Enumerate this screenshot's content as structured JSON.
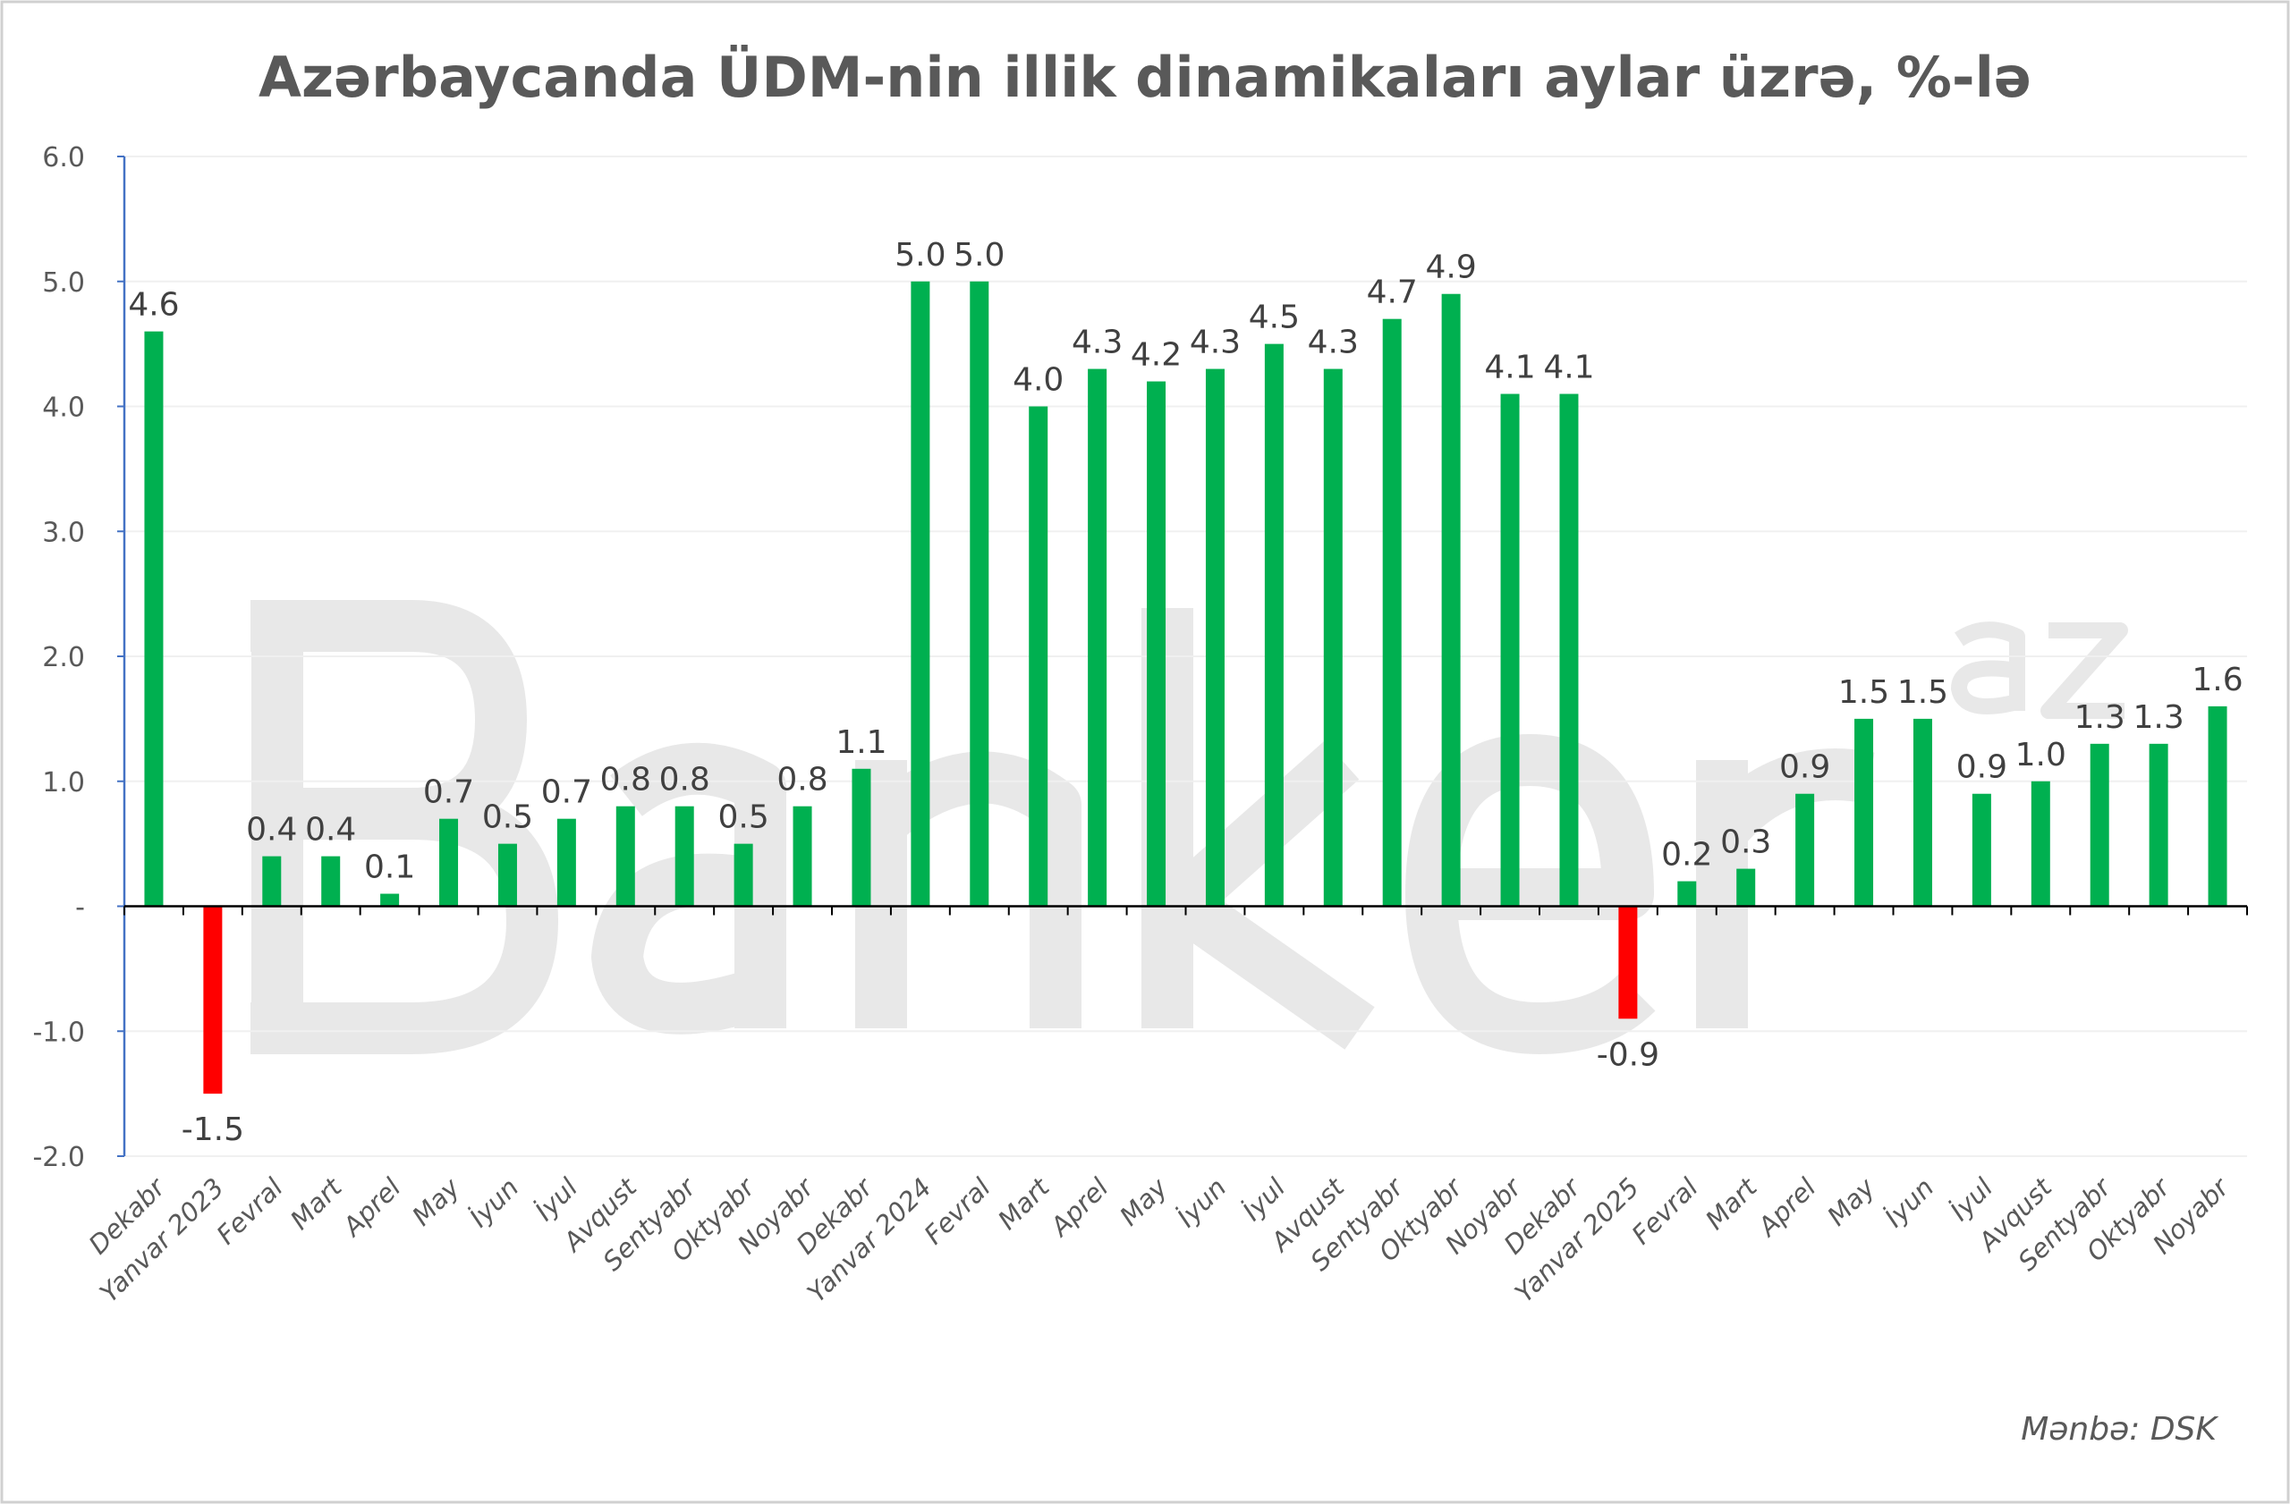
{
  "chart_data": {
    "type": "bar",
    "title": "Azərbaycanda ÜDM-nin illik dinamikaları aylar üzrə, %-lə",
    "xlabel": "",
    "ylabel": "",
    "ylim": [
      -2.0,
      6.0
    ],
    "yticks": [
      "6.0",
      "5.0",
      "4.0",
      "3.0",
      "2.0",
      "1.0",
      "-",
      "-1.0",
      "-2.0"
    ],
    "ytick_values": [
      6,
      5,
      4,
      3,
      2,
      1,
      0,
      -1,
      -2
    ],
    "grid": true,
    "categories": [
      "Dekabr",
      "Yanvar 2023",
      "Fevral",
      "Mart",
      "Aprel",
      "May",
      "İyun",
      "İyul",
      "Avqust",
      "Sentyabr",
      "Oktyabr",
      "Noyabr",
      "Dekabr",
      "Yanvar 2024",
      "Fevral",
      "Mart",
      "Aprel",
      "May",
      "İyun",
      "İyul",
      "Avqust",
      "Sentyabr",
      "Oktyabr",
      "Noyabr",
      "Dekabr",
      "Yanvar 2025",
      "Fevral",
      "Mart",
      "Aprel",
      "May",
      "İyun",
      "İyul",
      "Avqust",
      "Sentyabr",
      "Oktyabr",
      "Noyabr"
    ],
    "values": [
      4.6,
      -1.5,
      0.4,
      0.4,
      0.1,
      0.7,
      0.5,
      0.7,
      0.8,
      0.8,
      0.5,
      0.8,
      1.1,
      5.0,
      5.0,
      4.0,
      4.3,
      4.2,
      4.3,
      4.5,
      4.3,
      4.7,
      4.9,
      4.1,
      4.1,
      -0.9,
      0.2,
      0.3,
      0.9,
      1.5,
      1.5,
      0.9,
      1.0,
      1.3,
      1.3,
      1.6
    ],
    "colors": {
      "positive": "#00b050",
      "negative": "#ff0000",
      "axis": "#4472c4"
    }
  },
  "source": "Mənbə: DSK",
  "watermark": "Banker.az"
}
